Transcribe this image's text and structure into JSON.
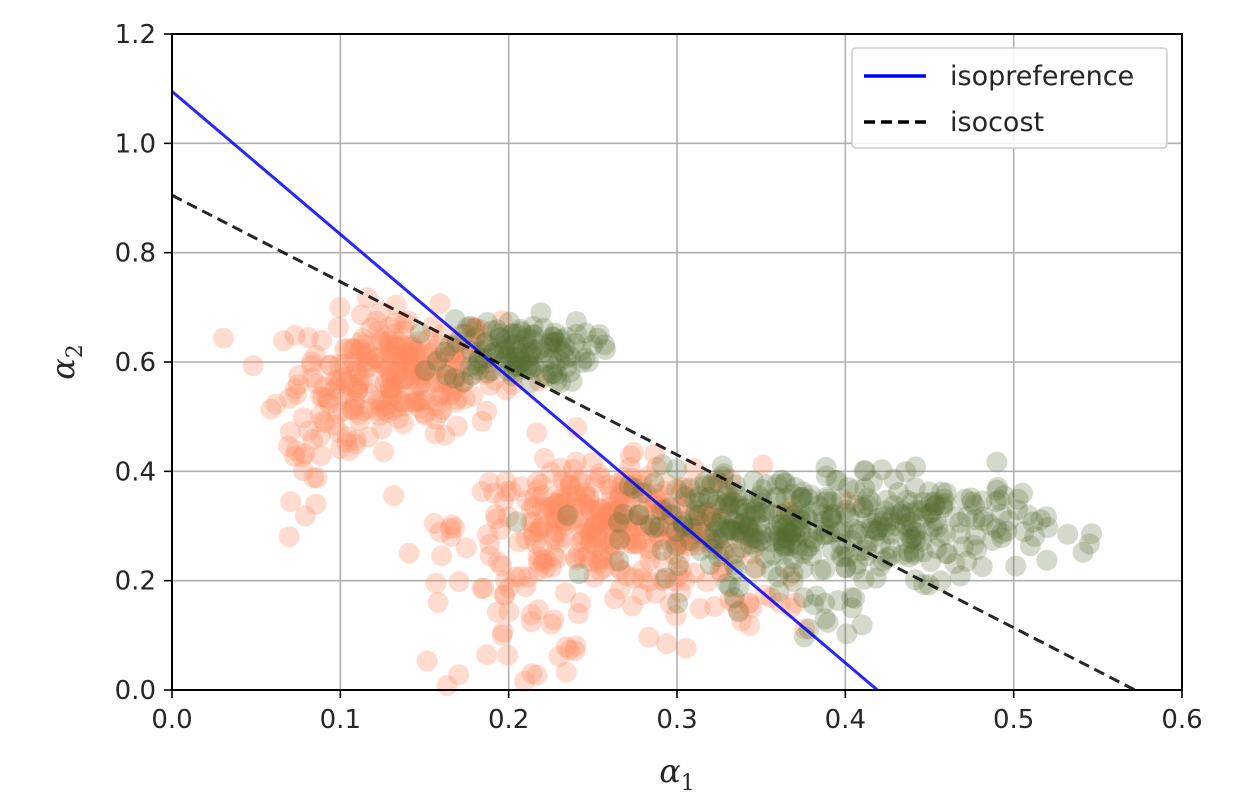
{
  "chart_data": {
    "type": "scatter",
    "title": "",
    "xlabel": {
      "main": "α",
      "sub": "1"
    },
    "ylabel": {
      "main": "α",
      "sub": "2"
    },
    "xlim": [
      0.0,
      0.6
    ],
    "ylim": [
      0.0,
      1.2
    ],
    "x_ticks": [
      "0.0",
      "0.1",
      "0.2",
      "0.3",
      "0.4",
      "0.5",
      "0.6"
    ],
    "y_ticks": [
      "0.0",
      "0.2",
      "0.4",
      "0.6",
      "0.8",
      "1.0",
      "1.2"
    ],
    "grid": true,
    "legend_position": "top-right",
    "lines": [
      {
        "name": "isopreference",
        "color": "#0000ff",
        "style": "solid",
        "points": [
          [
            0.0,
            1.095
          ],
          [
            0.419,
            0.0
          ]
        ]
      },
      {
        "name": "isocost",
        "color": "#000000",
        "style": "dashed",
        "points": [
          [
            0.0,
            0.905
          ],
          [
            0.572,
            0.0
          ]
        ]
      }
    ],
    "scatter_clusters": [
      {
        "color": "#ff8c5f",
        "opacity": 0.3,
        "clusters": [
          {
            "cx": 0.135,
            "cy": 0.58,
            "sx": 0.03,
            "sy": 0.055,
            "n": 260
          },
          {
            "cx": 0.085,
            "cy": 0.45,
            "sx": 0.015,
            "sy": 0.05,
            "n": 30
          },
          {
            "cx": 0.26,
            "cy": 0.3,
            "sx": 0.045,
            "sy": 0.055,
            "n": 340
          },
          {
            "cx": 0.22,
            "cy": 0.12,
            "sx": 0.04,
            "sy": 0.07,
            "n": 35
          },
          {
            "cx": 0.33,
            "cy": 0.15,
            "sx": 0.03,
            "sy": 0.04,
            "n": 25
          }
        ]
      },
      {
        "color": "#556b2f",
        "opacity": 0.25,
        "clusters": [
          {
            "cx": 0.205,
            "cy": 0.62,
            "sx": 0.022,
            "sy": 0.03,
            "n": 130
          },
          {
            "cx": 0.355,
            "cy": 0.3,
            "sx": 0.04,
            "sy": 0.05,
            "n": 260
          },
          {
            "cx": 0.45,
            "cy": 0.3,
            "sx": 0.035,
            "sy": 0.045,
            "n": 150
          },
          {
            "cx": 0.39,
            "cy": 0.14,
            "sx": 0.012,
            "sy": 0.03,
            "n": 12
          }
        ]
      }
    ]
  }
}
